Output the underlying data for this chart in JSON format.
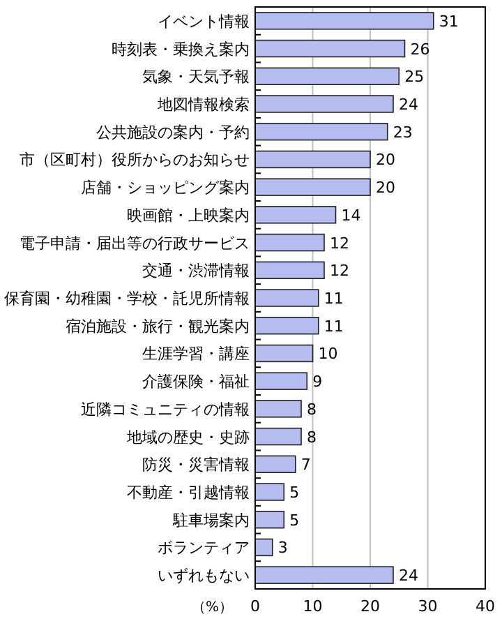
{
  "chart_data": {
    "type": "bar",
    "orientation": "horizontal",
    "xlabel": "（%）",
    "categories": [
      "イベント情報",
      "時刻表・乗換え案内",
      "気象・天気予報",
      "地図情報検索",
      "公共施設の案内・予約",
      "市（区町村）役所からのお知らせ",
      "店舗・ショッピング案内",
      "映画館・上映案内",
      "電子申請・届出等の行政サービス",
      "交通・渋滞情報",
      "保育園・幼稚園・学校・託児所情報",
      "宿泊施設・旅行・観光案内",
      "生涯学習・講座",
      "介護保険・福祉",
      "近隣コミュニティの情報",
      "地域の歴史・史跡",
      "防災・災害情報",
      "不動産・引越情報",
      "駐車場案内",
      "ボランティア",
      "いずれもない"
    ],
    "values": [
      31,
      26,
      25,
      24,
      23,
      20,
      20,
      14,
      12,
      12,
      11,
      11,
      10,
      9,
      8,
      8,
      7,
      5,
      5,
      3,
      24
    ],
    "color": "#b4bcf0",
    "xlim": [
      0,
      40
    ],
    "xticks": [
      0,
      10,
      20,
      30,
      40
    ],
    "grid": "x",
    "data_labels": true
  }
}
